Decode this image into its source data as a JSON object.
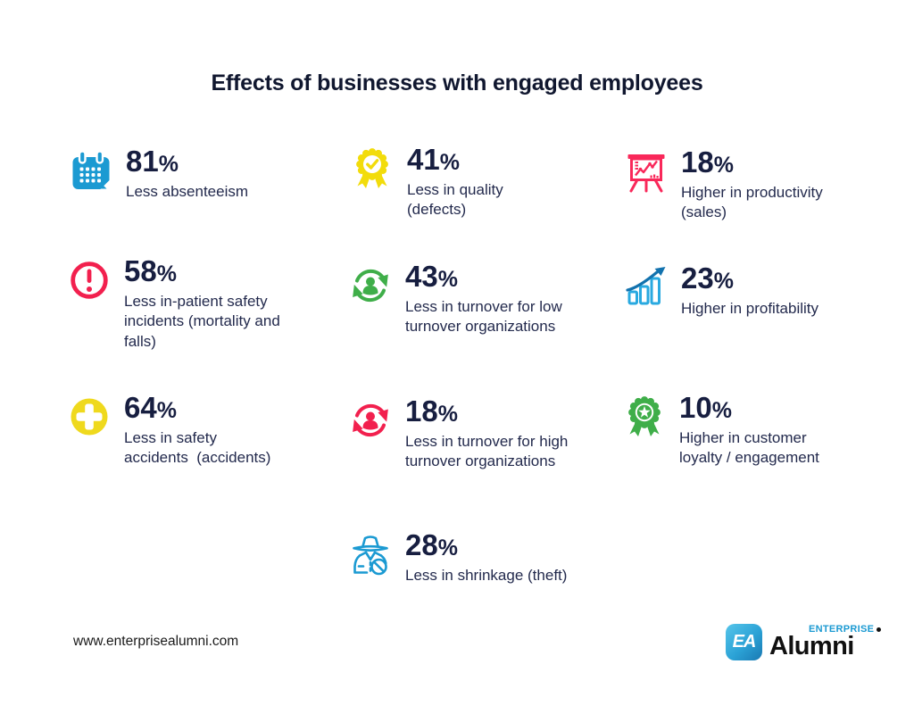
{
  "title": "Effects of businesses with engaged employees",
  "stats": [
    {
      "icon": "calendar-icon",
      "color": "#1b9ad2",
      "percent": "81%",
      "label": "Less absenteeism"
    },
    {
      "icon": "award-check-icon",
      "color": "#f2dc0b",
      "percent": "41%",
      "label": "Less in quality\n(defects)"
    },
    {
      "icon": "presentation-chart-icon",
      "color": "#f9285a",
      "percent": "18%",
      "label": "Higher in productivity\n(sales)"
    },
    {
      "icon": "alert-icon",
      "color": "#f2204e",
      "percent": "58%",
      "label": "Less in-patient safety\nincidents (mortality and\nfalls)"
    },
    {
      "icon": "employee-turnover-icon",
      "color": "#3fae49",
      "percent": "43%",
      "label": "Less in turnover for low\nturnover organizations"
    },
    {
      "icon": "profit-growth-icon",
      "color": "#29a9e0",
      "color2": "#1272ae",
      "percent": "23%",
      "label": "Higher in profitability"
    },
    {
      "icon": "medical-cross-icon",
      "color": "#efd91d",
      "percent": "64%",
      "label": "Less in safety\naccidents  (accidents)"
    },
    {
      "icon": "employee-turnover-icon",
      "color": "#f2204e",
      "percent": "18%",
      "label": "Less in turnover for high\nturnover organizations"
    },
    {
      "icon": "award-star-icon",
      "color": "#3fae49",
      "percent": "10%",
      "label": "Higher in customer\nloyalty / engagement"
    },
    {
      "icon": "thief-icon",
      "color": "#1b9ad2",
      "percent": "28%",
      "label": "Less in shrinkage (theft)"
    }
  ],
  "footer": {
    "url": "www.enterprisealumni.com",
    "logo": {
      "monogram": "EA",
      "brand_top": "ENTERPRISE",
      "brand_bottom": "Alumni"
    }
  },
  "colors": {
    "text_navy": "#171e40",
    "label_navy": "#232a4d",
    "blue": "#1b9ad2",
    "light_blue": "#29a9e0",
    "dark_blue": "#1272ae",
    "yellow": "#f2dc0b",
    "red_pink": "#f2204e",
    "pink": "#f9285a",
    "green": "#3fae49"
  },
  "chart_data": {
    "type": "table",
    "title": "Effects of businesses with engaged employees",
    "categories": [
      "Less absenteeism",
      "Less in quality (defects)",
      "Higher in productivity (sales)",
      "Less in-patient safety incidents (mortality and falls)",
      "Less in turnover for low turnover organizations",
      "Higher in profitability",
      "Less in safety accidents (accidents)",
      "Less in turnover for high turnover organizations",
      "Higher in customer loyalty / engagement",
      "Less in shrinkage (theft)"
    ],
    "values": [
      81,
      41,
      18,
      58,
      43,
      23,
      64,
      18,
      10,
      28
    ],
    "unit": "%"
  }
}
